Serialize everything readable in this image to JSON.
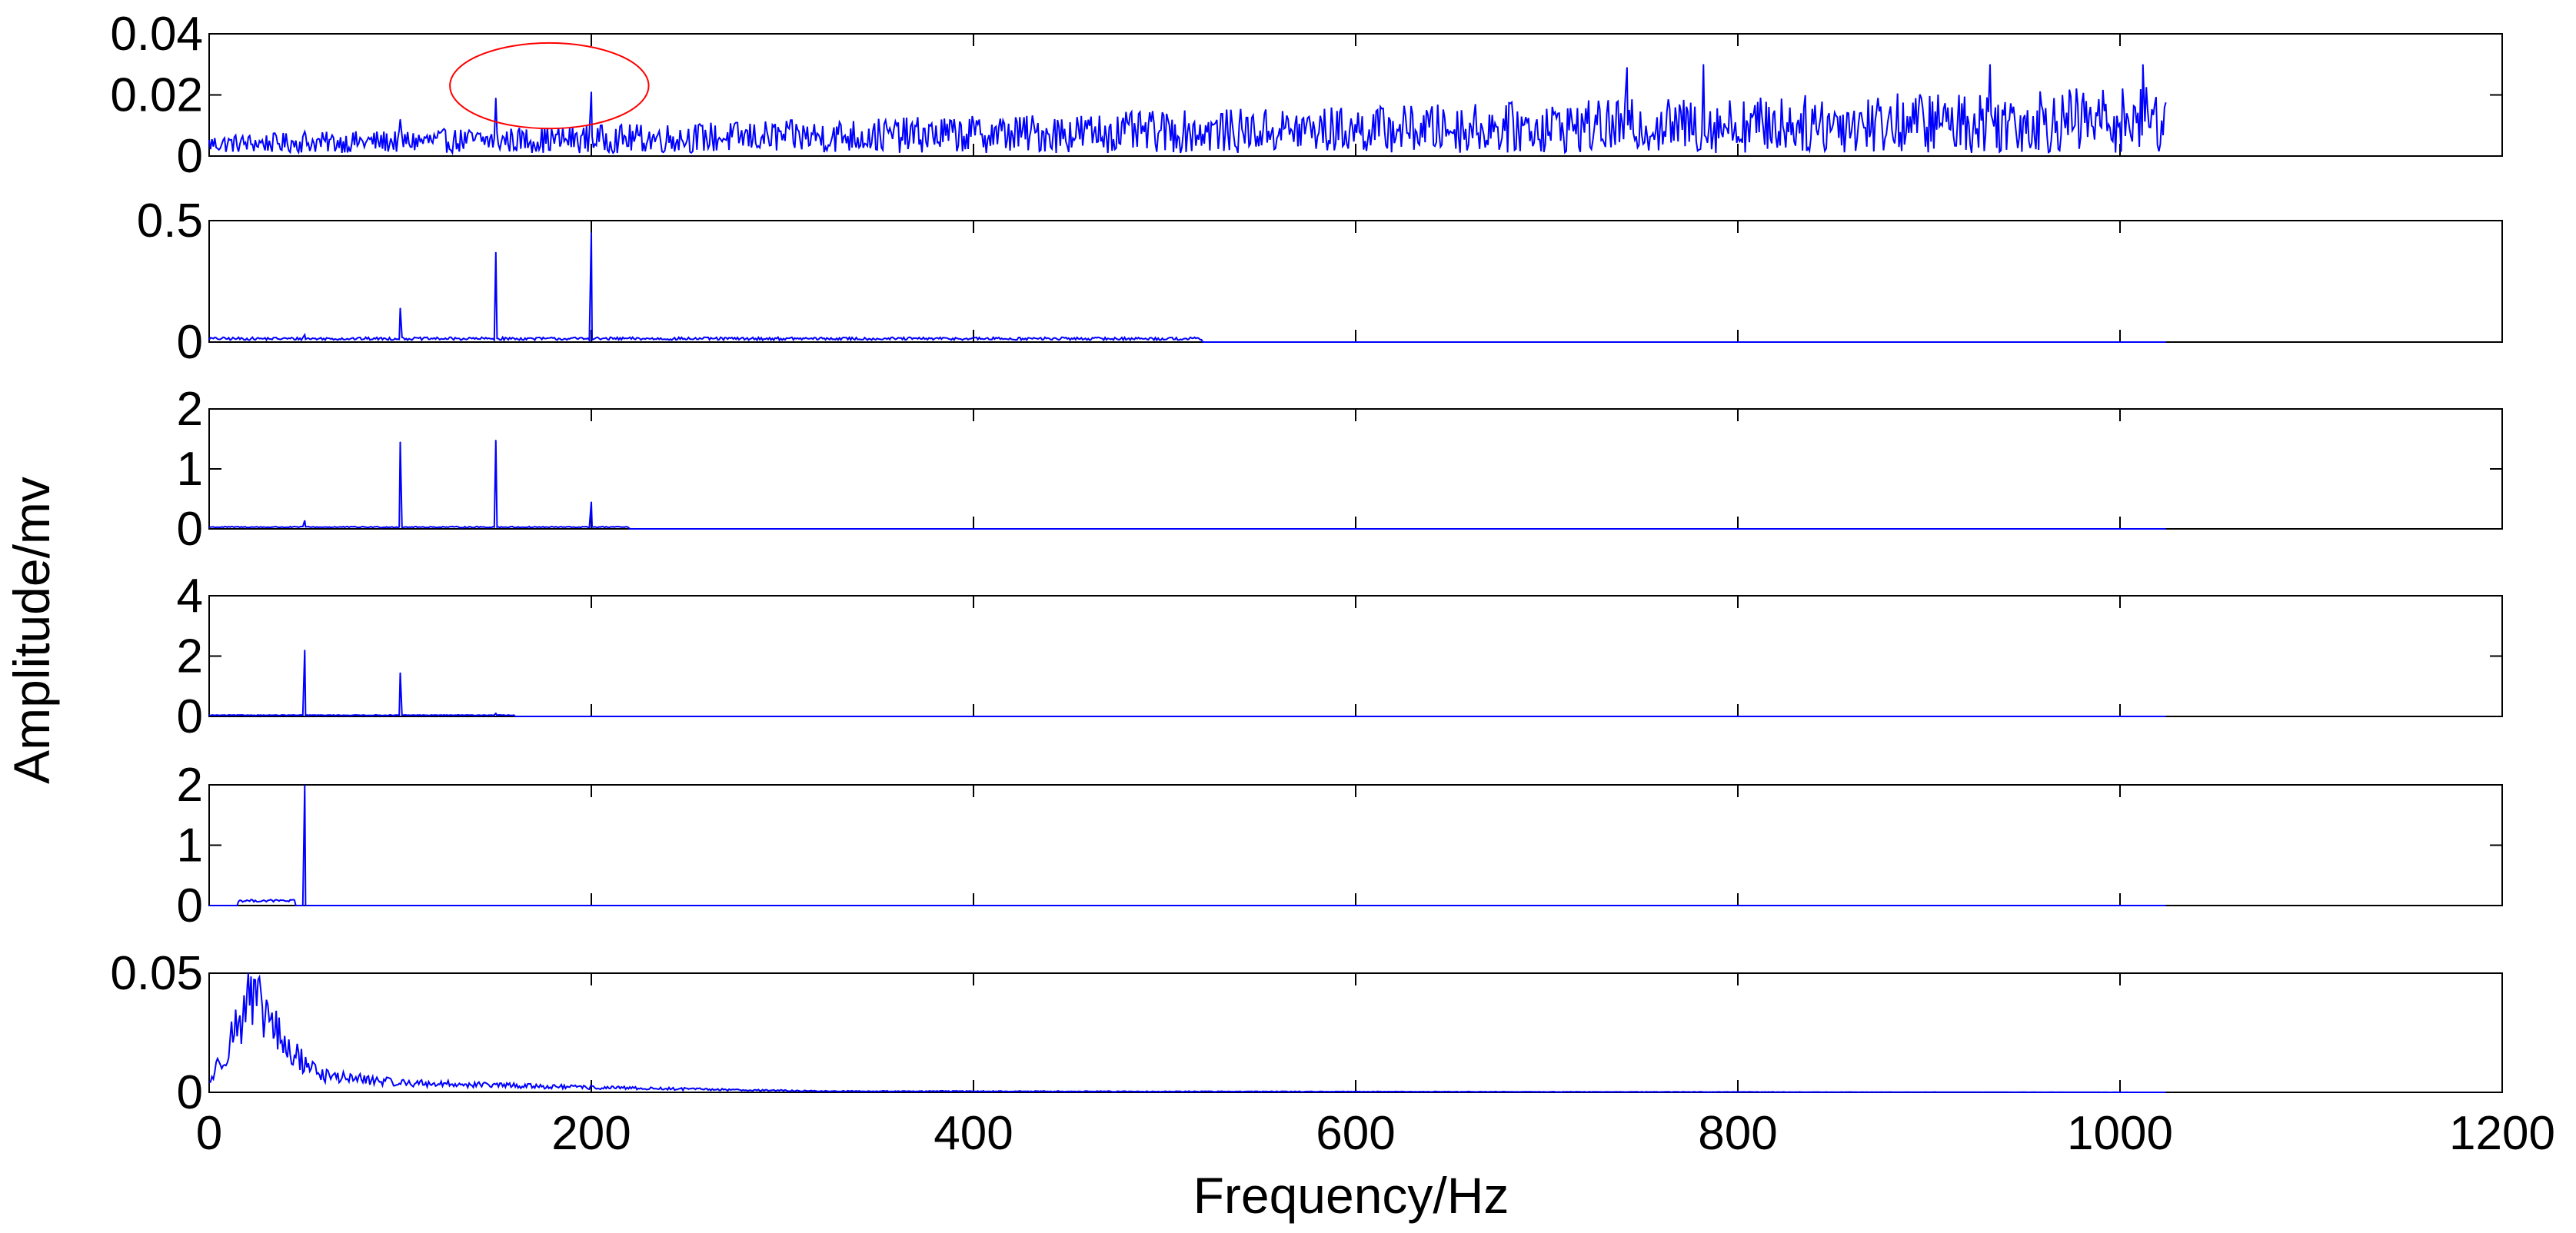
{
  "figure": {
    "xlabel": "Frequency/Hz",
    "ylabel": "Amplitude/mv",
    "line_color": "#0000ff",
    "annotation_color": "#ff0000",
    "x_ticks": [
      "0",
      "200",
      "400",
      "600",
      "800",
      "1000",
      "1200"
    ]
  },
  "chart_data": [
    {
      "type": "line",
      "title": "",
      "xlim": [
        0,
        1200
      ],
      "ylim": [
        0,
        0.04
      ],
      "y_ticks": [
        "0",
        "0.02",
        "0.04"
      ],
      "x_range": [
        0,
        1024
      ],
      "noise": {
        "floor_start": 0.004,
        "floor_end": 0.012,
        "spread_start": 0.003,
        "spread_end": 0.011
      },
      "peaks": [
        {
          "x": 50,
          "y": 0.008
        },
        {
          "x": 100,
          "y": 0.012
        },
        {
          "x": 150,
          "y": 0.019
        },
        {
          "x": 200,
          "y": 0.021
        },
        {
          "x": 742,
          "y": 0.029
        },
        {
          "x": 782,
          "y": 0.03
        },
        {
          "x": 932,
          "y": 0.03
        },
        {
          "x": 1012,
          "y": 0.03
        }
      ],
      "annotation": {
        "shape": "ellipse",
        "x_center": 178,
        "x_radius": 52,
        "y_center": 0.023,
        "y_radius": 0.014
      }
    },
    {
      "type": "line",
      "title": "",
      "xlim": [
        0,
        1200
      ],
      "ylim": [
        0,
        0.5
      ],
      "y_ticks": [
        "0",
        "0.5"
      ],
      "x_range": [
        0,
        1024
      ],
      "noise": {
        "floor": 0.008,
        "spread": 0.012,
        "x_end": 520
      },
      "peaks": [
        {
          "x": 50,
          "y": 0.03
        },
        {
          "x": 100,
          "y": 0.14
        },
        {
          "x": 150,
          "y": 0.37
        },
        {
          "x": 200,
          "y": 0.45
        }
      ]
    },
    {
      "type": "line",
      "title": "",
      "xlim": [
        0,
        1200
      ],
      "ylim": [
        0,
        2
      ],
      "y_ticks": [
        "0",
        "1",
        "2"
      ],
      "x_range": [
        0,
        1024
      ],
      "noise": {
        "floor": 0.02,
        "spread": 0.02,
        "x_end": 220
      },
      "peaks": [
        {
          "x": 50,
          "y": 0.14
        },
        {
          "x": 100,
          "y": 1.45
        },
        {
          "x": 150,
          "y": 1.48
        },
        {
          "x": 200,
          "y": 0.45
        }
      ]
    },
    {
      "type": "line",
      "title": "",
      "xlim": [
        0,
        1200
      ],
      "ylim": [
        0,
        4
      ],
      "y_ticks": [
        "0",
        "2",
        "4"
      ],
      "x_range": [
        0,
        1024
      ],
      "noise": {
        "floor": 0.03,
        "spread": 0.02,
        "x_end": 160
      },
      "peaks": [
        {
          "x": 50,
          "y": 2.2
        },
        {
          "x": 100,
          "y": 1.45
        },
        {
          "x": 150,
          "y": 0.1
        }
      ]
    },
    {
      "type": "line",
      "title": "",
      "xlim": [
        0,
        1200
      ],
      "ylim": [
        0,
        2
      ],
      "y_ticks": [
        "0",
        "1",
        "2"
      ],
      "x_range": [
        0,
        1024
      ],
      "noise": {
        "floor": 0.06,
        "spread": 0.04,
        "x_start": 15,
        "x_end": 45
      },
      "peaks": [
        {
          "x": 50,
          "y": 2.0
        }
      ]
    },
    {
      "type": "line",
      "title": "",
      "xlim": [
        0,
        1200
      ],
      "ylim": [
        0,
        0.05
      ],
      "y_ticks": [
        "0",
        "0.05"
      ],
      "x_range": [
        0,
        1024
      ],
      "envelope": [
        {
          "x": 0,
          "y": 0.004
        },
        {
          "x": 10,
          "y": 0.02
        },
        {
          "x": 20,
          "y": 0.038
        },
        {
          "x": 30,
          "y": 0.033
        },
        {
          "x": 40,
          "y": 0.018
        },
        {
          "x": 60,
          "y": 0.007
        },
        {
          "x": 100,
          "y": 0.004
        },
        {
          "x": 200,
          "y": 0.002
        },
        {
          "x": 320,
          "y": 0.0005
        },
        {
          "x": 1024,
          "y": 0.0
        }
      ],
      "peaks": [
        {
          "x": 20,
          "y": 0.045
        },
        {
          "x": 27,
          "y": 0.043
        }
      ]
    }
  ]
}
